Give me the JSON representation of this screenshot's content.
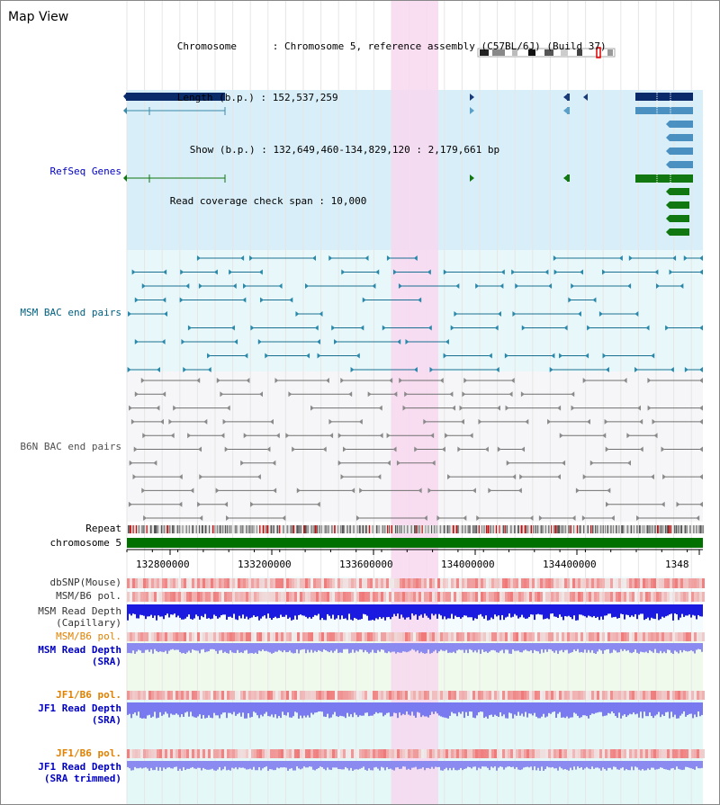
{
  "view_title": "Map View",
  "info": {
    "chromosome_key": "Chromosome",
    "chromosome_val": "Chromosome 5, reference assembly (C57BL/6J) (Build 37)",
    "length_key": "Length (b.p.)",
    "length_val": "152,537,259",
    "show_key": "Show (b.p.)",
    "show_val": "132,649,460-134,829,120 : 2,179,661 bp",
    "coverage_key": "Read coverage check span",
    "coverage_val": "10,000"
  },
  "tracks": {
    "refseq": "RefSeq Genes",
    "msm_bac": "MSM BAC end pairs",
    "b6n_bac": "B6N BAC end pairs",
    "repeat": "Repeat",
    "chromosome": "chromosome 5",
    "dbsnp": "dbSNP(Mouse)",
    "msm_b6_pol": "MSM/B6 pol.",
    "msm_depth_cap_1": "MSM Read Depth",
    "msm_depth_cap_2": "(Capillary)",
    "msm_b6_pol_sra": "MSM/B6 pol.",
    "msm_depth_sra_1": "MSM Read Depth",
    "msm_depth_sra_2": "(SRA)",
    "jf1_b6_pol_1": "JF1/B6 pol.",
    "jf1_depth_1": "JF1 Read Depth",
    "jf1_depth_1b": "(SRA)",
    "jf1_b6_pol_2": "JF1/B6 pol.",
    "jf1_depth_2": "JF1 Read Depth",
    "jf1_depth_2b": "(SRA trimmed)"
  },
  "axis": {
    "ticks": [
      "132800000",
      "133200000",
      "133600000",
      "134000000",
      "134400000",
      "1348"
    ]
  },
  "colors": {
    "refseq_label": "#0000c0",
    "msm_label": "#006080",
    "b6n_label": "#505050",
    "pol_label": "#e08000",
    "depth_label": "#0000c0",
    "highlight": "#f8d8f0",
    "chrom_green": "#007000"
  }
}
